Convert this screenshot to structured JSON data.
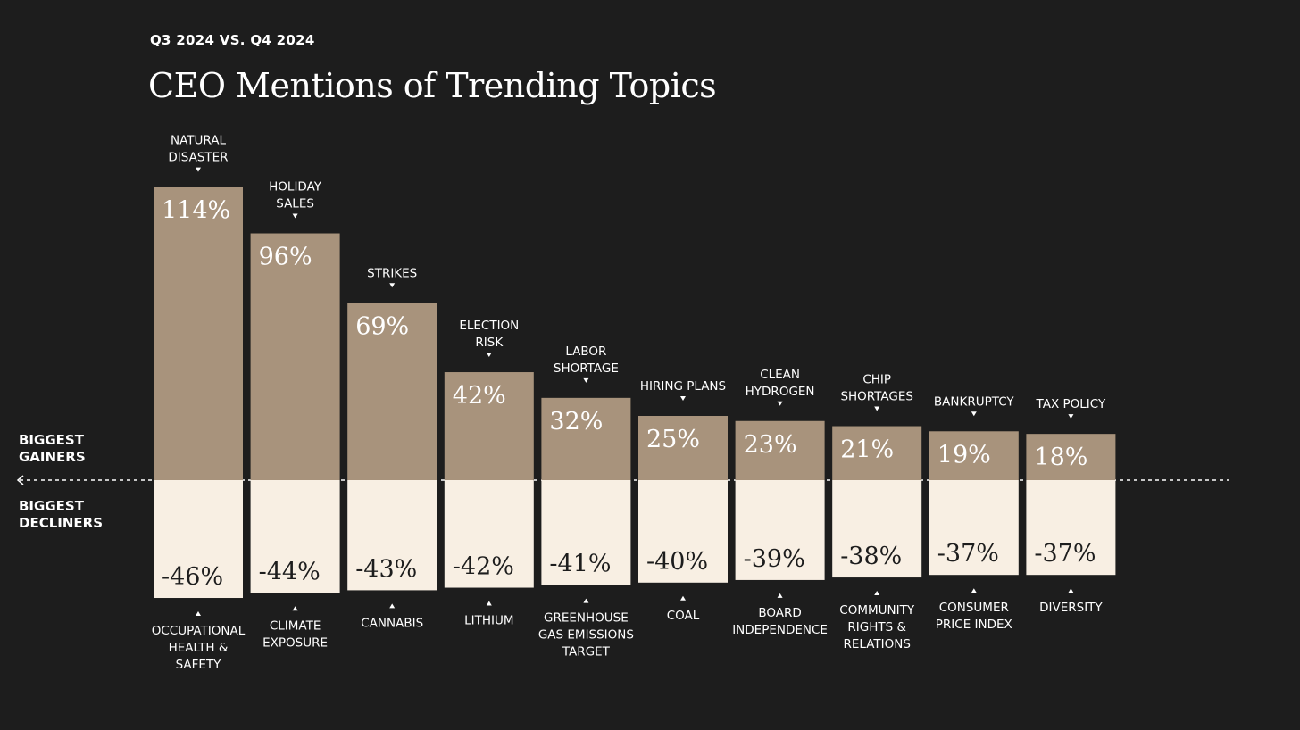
{
  "header": {
    "subtitle": "Q3 2024 VS. Q4 2024",
    "title": "CEO Mentions of Trending Topics"
  },
  "side_labels": {
    "gainers": "BIGGEST\nGAINERS",
    "decliners": "BIGGEST\nDECLINERS"
  },
  "colors": {
    "background": "#1d1d1d",
    "gainer_bar": "#a8937c",
    "decliner_bar": "#f8efe3",
    "gainer_text": "#ffffff",
    "decliner_text": "#1d1d1d",
    "label_text": "#ffffff"
  },
  "chart_data": {
    "type": "bar",
    "title": "CEO Mentions of Trending Topics",
    "subtitle": "Q3 2024 VS. Q4 2024",
    "unit": "%",
    "gainers": [
      {
        "category": "NATURAL DISASTER",
        "value": 114,
        "label": "114%"
      },
      {
        "category": "HOLIDAY SALES",
        "value": 96,
        "label": "96%"
      },
      {
        "category": "STRIKES",
        "value": 69,
        "label": "69%"
      },
      {
        "category": "ELECTION RISK",
        "value": 42,
        "label": "42%"
      },
      {
        "category": "LABOR SHORTAGE",
        "value": 32,
        "label": "32%"
      },
      {
        "category": "HIRING PLANS",
        "value": 25,
        "label": "25%"
      },
      {
        "category": "CLEAN HYDROGEN",
        "value": 23,
        "label": "23%"
      },
      {
        "category": "CHIP SHORTAGES",
        "value": 21,
        "label": "21%"
      },
      {
        "category": "BANKRUPTCY",
        "value": 19,
        "label": "19%"
      },
      {
        "category": "TAX POLICY",
        "value": 18,
        "label": "18%"
      }
    ],
    "decliners": [
      {
        "category": "OCCUPATIONAL HEALTH & SAFETY",
        "value": -46,
        "label": "-46%"
      },
      {
        "category": "CLIMATE EXPOSURE",
        "value": -44,
        "label": "-44%"
      },
      {
        "category": "CANNABIS",
        "value": -43,
        "label": "-43%"
      },
      {
        "category": "LITHIUM",
        "value": -42,
        "label": "-42%"
      },
      {
        "category": "GREENHOUSE GAS EMISSIONS TARGET",
        "value": -41,
        "label": "-41%"
      },
      {
        "category": "COAL",
        "value": -40,
        "label": "-40%"
      },
      {
        "category": "BOARD INDEPENDENCE",
        "value": -39,
        "label": "-39%"
      },
      {
        "category": "COMMUNITY RIGHTS & RELATIONS",
        "value": -38,
        "label": "-38%"
      },
      {
        "category": "CONSUMER PRICE INDEX",
        "value": -37,
        "label": "-37%"
      },
      {
        "category": "DIVERSITY",
        "value": -37,
        "label": "-37%"
      }
    ]
  }
}
